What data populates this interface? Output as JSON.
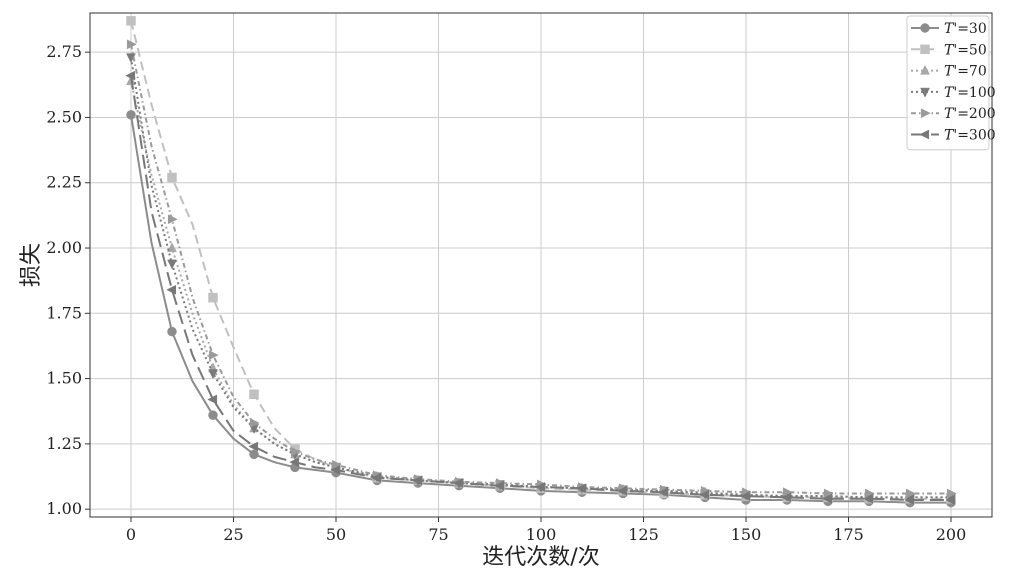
{
  "chart_data": {
    "type": "line",
    "title": "",
    "xlabel": "迭代次数/次",
    "ylabel": "损失",
    "xlim": [
      -10,
      210
    ],
    "ylim": [
      0.97,
      2.9
    ],
    "xticks": [
      0,
      25,
      50,
      75,
      100,
      125,
      150,
      175,
      200
    ],
    "yticks": [
      1.0,
      1.25,
      1.5,
      1.75,
      2.0,
      2.25,
      2.5,
      2.75
    ],
    "xtick_labels": [
      "0",
      "25",
      "50",
      "75",
      "100",
      "125",
      "150",
      "175",
      "200"
    ],
    "ytick_labels": [
      "1.00",
      "1.25",
      "1.50",
      "1.75",
      "2.00",
      "2.25",
      "2.50",
      "2.75"
    ],
    "grid": true,
    "legend_position": "top-right",
    "series": [
      {
        "name": "T'=30",
        "name_prefix": "T'",
        "name_suffix": "=30",
        "color": "#8c8c8c",
        "dash": "",
        "marker": "circle",
        "x": [
          0,
          5,
          10,
          15,
          20,
          25,
          30,
          35,
          40,
          45,
          50,
          60,
          70,
          80,
          90,
          100,
          110,
          120,
          130,
          140,
          150,
          160,
          170,
          180,
          190,
          200
        ],
        "values": [
          2.51,
          2.02,
          1.68,
          1.49,
          1.36,
          1.27,
          1.21,
          1.18,
          1.16,
          1.15,
          1.14,
          1.11,
          1.1,
          1.09,
          1.08,
          1.07,
          1.065,
          1.06,
          1.055,
          1.045,
          1.035,
          1.035,
          1.03,
          1.03,
          1.025,
          1.025
        ]
      },
      {
        "name": "T'=50",
        "name_prefix": "T'",
        "name_suffix": "=50",
        "color": "#c0c0c0",
        "dash": "9,5",
        "marker": "square",
        "x": [
          0,
          5,
          10,
          15,
          20,
          25,
          30,
          35,
          40,
          45,
          50,
          60,
          70,
          80,
          90,
          100,
          110,
          120,
          130,
          140,
          150,
          160,
          170,
          180,
          190,
          200
        ],
        "values": [
          2.87,
          2.55,
          2.27,
          2.09,
          1.81,
          1.62,
          1.44,
          1.31,
          1.23,
          1.19,
          1.16,
          1.12,
          1.11,
          1.1,
          1.09,
          1.08,
          1.075,
          1.07,
          1.06,
          1.055,
          1.05,
          1.045,
          1.045,
          1.04,
          1.04,
          1.04
        ]
      },
      {
        "name": "T'=70",
        "name_prefix": "T'",
        "name_suffix": "=70",
        "color": "#a8a8a8",
        "dash": "2,3",
        "marker": "triangle-up",
        "x": [
          0,
          5,
          10,
          15,
          20,
          25,
          30,
          35,
          40,
          45,
          50,
          60,
          70,
          80,
          90,
          100,
          110,
          120,
          130,
          140,
          150,
          160,
          170,
          180,
          190,
          200
        ],
        "values": [
          2.64,
          2.28,
          2.0,
          1.75,
          1.54,
          1.4,
          1.31,
          1.25,
          1.21,
          1.18,
          1.16,
          1.125,
          1.11,
          1.1,
          1.09,
          1.085,
          1.08,
          1.075,
          1.07,
          1.065,
          1.055,
          1.05,
          1.05,
          1.045,
          1.045,
          1.045
        ]
      },
      {
        "name": "T'=100",
        "name_prefix": "T'",
        "name_suffix": "=100",
        "color": "#7a7a7a",
        "dash": "2,3",
        "marker": "triangle-down",
        "x": [
          0,
          5,
          10,
          15,
          20,
          25,
          30,
          35,
          40,
          45,
          50,
          60,
          70,
          80,
          90,
          100,
          110,
          120,
          130,
          140,
          150,
          160,
          170,
          180,
          190,
          200
        ],
        "values": [
          2.73,
          2.24,
          1.94,
          1.69,
          1.52,
          1.39,
          1.31,
          1.25,
          1.21,
          1.18,
          1.16,
          1.125,
          1.11,
          1.1,
          1.095,
          1.085,
          1.08,
          1.075,
          1.07,
          1.06,
          1.055,
          1.05,
          1.05,
          1.045,
          1.045,
          1.045
        ]
      },
      {
        "name": "T'=200",
        "name_prefix": "T'",
        "name_suffix": "=200",
        "color": "#9a9a9a",
        "dash": "5,3,1.5,3",
        "marker": "triangle-right",
        "x": [
          0,
          5,
          10,
          15,
          20,
          25,
          30,
          35,
          40,
          45,
          50,
          60,
          70,
          80,
          90,
          100,
          110,
          120,
          130,
          140,
          150,
          160,
          170,
          180,
          190,
          200
        ],
        "values": [
          2.78,
          2.39,
          2.11,
          1.81,
          1.59,
          1.43,
          1.33,
          1.27,
          1.22,
          1.19,
          1.17,
          1.13,
          1.115,
          1.105,
          1.1,
          1.095,
          1.085,
          1.08,
          1.075,
          1.07,
          1.065,
          1.065,
          1.06,
          1.06,
          1.06,
          1.06
        ]
      },
      {
        "name": "T'=300",
        "name_prefix": "T'",
        "name_suffix": "=300",
        "color": "#777777",
        "dash": "14,6",
        "marker": "triangle-left",
        "x": [
          0,
          5,
          10,
          15,
          20,
          25,
          30,
          35,
          40,
          45,
          50,
          60,
          70,
          80,
          90,
          100,
          110,
          120,
          130,
          140,
          150,
          160,
          170,
          180,
          190,
          200
        ],
        "values": [
          2.66,
          2.14,
          1.84,
          1.59,
          1.42,
          1.3,
          1.24,
          1.2,
          1.18,
          1.16,
          1.15,
          1.12,
          1.11,
          1.1,
          1.09,
          1.085,
          1.08,
          1.07,
          1.065,
          1.055,
          1.05,
          1.045,
          1.04,
          1.04,
          1.035,
          1.035
        ]
      }
    ]
  }
}
